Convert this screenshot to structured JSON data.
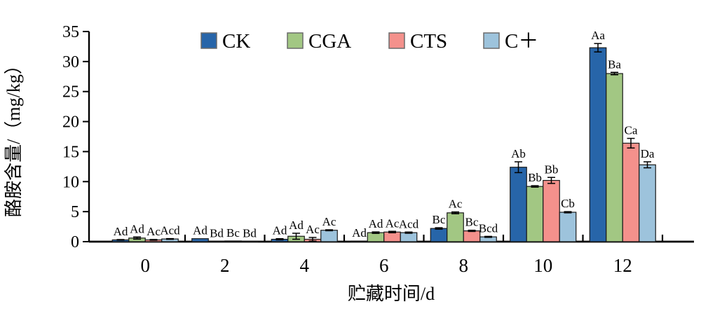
{
  "chart_data": {
    "type": "bar",
    "title": "",
    "xlabel": "贮藏时间/d",
    "ylabel": "酪胺含量/（mg/kg）",
    "categories": [
      "0",
      "2",
      "4",
      "6",
      "8",
      "10",
      "12"
    ],
    "ylim": [
      0,
      35
    ],
    "yticks": [
      0,
      5,
      10,
      15,
      20,
      25,
      30,
      35
    ],
    "grid": false,
    "legend_position": "top-center-horizontal",
    "bar_outline_color": "#1a1a1a",
    "axis_color": "#000000",
    "series": [
      {
        "name": "CK",
        "color": "#2765A9",
        "values": [
          0.3,
          0.5,
          0.4,
          0.1,
          2.2,
          12.4,
          32.3
        ],
        "errors": [
          0.05,
          0.0,
          0.1,
          0.0,
          0.12,
          0.9,
          0.7
        ],
        "labels": [
          "Ad",
          "Ad",
          "Ad",
          "Ad",
          "Bc",
          "Ab",
          "Aa"
        ]
      },
      {
        "name": "CGA",
        "color": "#A2C783",
        "values": [
          0.6,
          0.08,
          0.9,
          1.5,
          4.8,
          9.2,
          28.0
        ],
        "errors": [
          0.18,
          0.0,
          0.5,
          0.12,
          0.15,
          0.12,
          0.2
        ],
        "labels": [
          "Ad",
          "Bd",
          "Ad",
          "Ad",
          "Ac",
          "Bb",
          "Ba"
        ]
      },
      {
        "name": "CTS",
        "color": "#F4918C",
        "values": [
          0.3,
          0.12,
          0.4,
          1.6,
          1.8,
          10.2,
          16.4
        ],
        "errors": [
          0.06,
          0.0,
          0.3,
          0.12,
          0.1,
          0.5,
          0.8
        ],
        "labels": [
          "Ac",
          "Bc",
          "Ac",
          "Ac",
          "Bc",
          "Bb",
          "Ca"
        ]
      },
      {
        "name": "C＋",
        "color": "#9DC3DC",
        "values": [
          0.45,
          0.06,
          1.9,
          1.5,
          0.8,
          4.9,
          12.8
        ],
        "errors": [
          0.06,
          0.0,
          0.08,
          0.1,
          0.08,
          0.1,
          0.5
        ],
        "labels": [
          "Acd",
          "Bd",
          "Ac",
          "Acd",
          "Bcd",
          "Cb",
          "Da"
        ]
      }
    ]
  }
}
